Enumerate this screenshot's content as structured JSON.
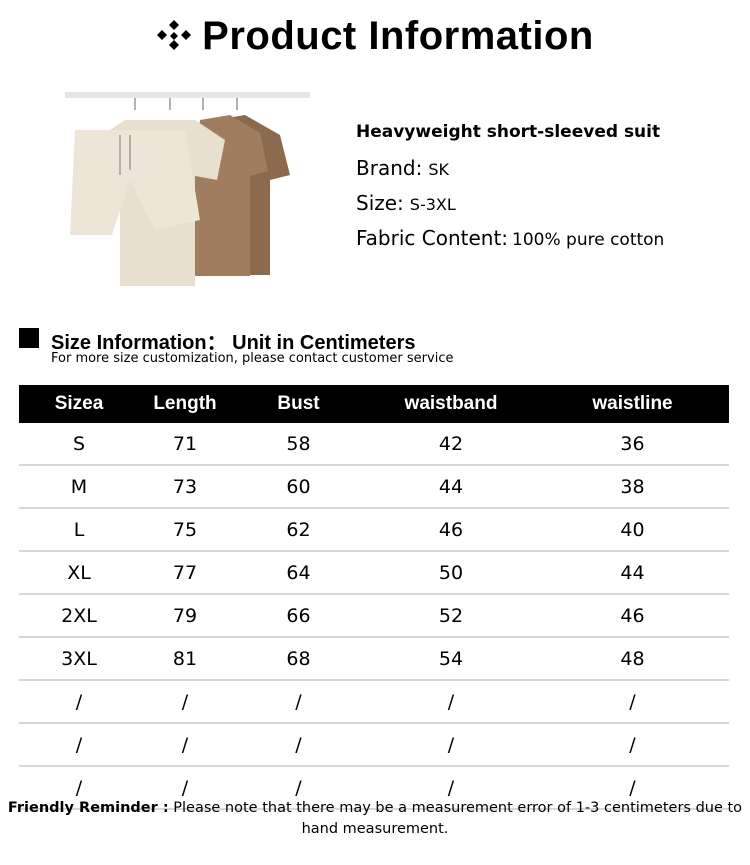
{
  "title": "Product Information",
  "product": {
    "name": "Heavyweight short-sleeved suit",
    "brand_label": "Brand:",
    "brand": "SK",
    "size_label": "Size:",
    "size": "S-3XL",
    "fabric_label": "Fabric Content:",
    "fabric": "100% pure cotton"
  },
  "size_info": {
    "heading": "Size Information： Unit in Centimeters",
    "subheading": "For more size customization, please contact customer service"
  },
  "table": {
    "headers": [
      "Sizea",
      "Length",
      "Bust",
      "waistband",
      "waistline"
    ],
    "rows": [
      [
        "S",
        "71",
        "58",
        "42",
        "36"
      ],
      [
        "M",
        "73",
        "60",
        "44",
        "38"
      ],
      [
        "L",
        "75",
        "62",
        "46",
        "40"
      ],
      [
        "XL",
        "77",
        "64",
        "50",
        "44"
      ],
      [
        "2XL",
        "79",
        "66",
        "52",
        "46"
      ],
      [
        "3XL",
        "81",
        "68",
        "54",
        "48"
      ],
      [
        "/",
        "/",
        "/",
        "/",
        "/"
      ],
      [
        "/",
        "/",
        "/",
        "/",
        "/"
      ],
      [
        "/",
        "/",
        "/",
        "/",
        "/"
      ]
    ]
  },
  "reminder": {
    "label": "Friendly Reminder :",
    "text": " Please note that there may be a measurement error of 1-3 centimeters due to hand measurement."
  }
}
